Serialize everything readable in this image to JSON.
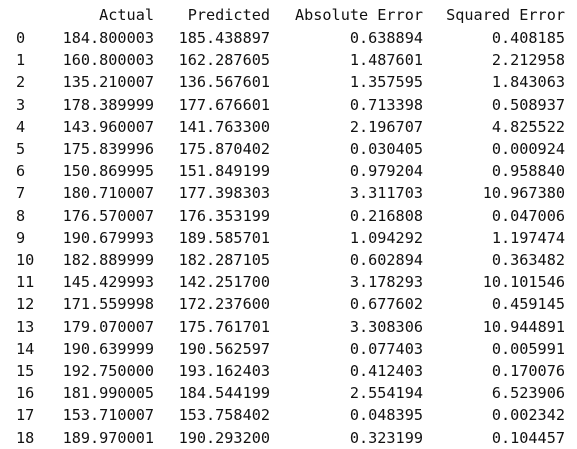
{
  "table": {
    "columns": [
      "Actual",
      "Predicted",
      "Absolute Error",
      "Squared Error"
    ],
    "rows": [
      {
        "index": "0",
        "actual": "184.800003",
        "predicted": "185.438897",
        "abs_error": "0.638894",
        "sq_error": "0.408185"
      },
      {
        "index": "1",
        "actual": "160.800003",
        "predicted": "162.287605",
        "abs_error": "1.487601",
        "sq_error": "2.212958"
      },
      {
        "index": "2",
        "actual": "135.210007",
        "predicted": "136.567601",
        "abs_error": "1.357595",
        "sq_error": "1.843063"
      },
      {
        "index": "3",
        "actual": "178.389999",
        "predicted": "177.676601",
        "abs_error": "0.713398",
        "sq_error": "0.508937"
      },
      {
        "index": "4",
        "actual": "143.960007",
        "predicted": "141.763300",
        "abs_error": "2.196707",
        "sq_error": "4.825522"
      },
      {
        "index": "5",
        "actual": "175.839996",
        "predicted": "175.870402",
        "abs_error": "0.030405",
        "sq_error": "0.000924"
      },
      {
        "index": "6",
        "actual": "150.869995",
        "predicted": "151.849199",
        "abs_error": "0.979204",
        "sq_error": "0.958840"
      },
      {
        "index": "7",
        "actual": "180.710007",
        "predicted": "177.398303",
        "abs_error": "3.311703",
        "sq_error": "10.967380"
      },
      {
        "index": "8",
        "actual": "176.570007",
        "predicted": "176.353199",
        "abs_error": "0.216808",
        "sq_error": "0.047006"
      },
      {
        "index": "9",
        "actual": "190.679993",
        "predicted": "189.585701",
        "abs_error": "1.094292",
        "sq_error": "1.197474"
      },
      {
        "index": "10",
        "actual": "182.889999",
        "predicted": "182.287105",
        "abs_error": "0.602894",
        "sq_error": "0.363482"
      },
      {
        "index": "11",
        "actual": "145.429993",
        "predicted": "142.251700",
        "abs_error": "3.178293",
        "sq_error": "10.101546"
      },
      {
        "index": "12",
        "actual": "171.559998",
        "predicted": "172.237600",
        "abs_error": "0.677602",
        "sq_error": "0.459145"
      },
      {
        "index": "13",
        "actual": "179.070007",
        "predicted": "175.761701",
        "abs_error": "3.308306",
        "sq_error": "10.944891"
      },
      {
        "index": "14",
        "actual": "190.639999",
        "predicted": "190.562597",
        "abs_error": "0.077403",
        "sq_error": "0.005991"
      },
      {
        "index": "15",
        "actual": "192.750000",
        "predicted": "193.162403",
        "abs_error": "0.412403",
        "sq_error": "0.170076"
      },
      {
        "index": "16",
        "actual": "181.990005",
        "predicted": "184.544199",
        "abs_error": "2.554194",
        "sq_error": "6.523906"
      },
      {
        "index": "17",
        "actual": "153.710007",
        "predicted": "153.758402",
        "abs_error": "0.048395",
        "sq_error": "0.002342"
      },
      {
        "index": "18",
        "actual": "189.970001",
        "predicted": "190.293200",
        "abs_error": "0.323199",
        "sq_error": "0.104457"
      }
    ]
  }
}
